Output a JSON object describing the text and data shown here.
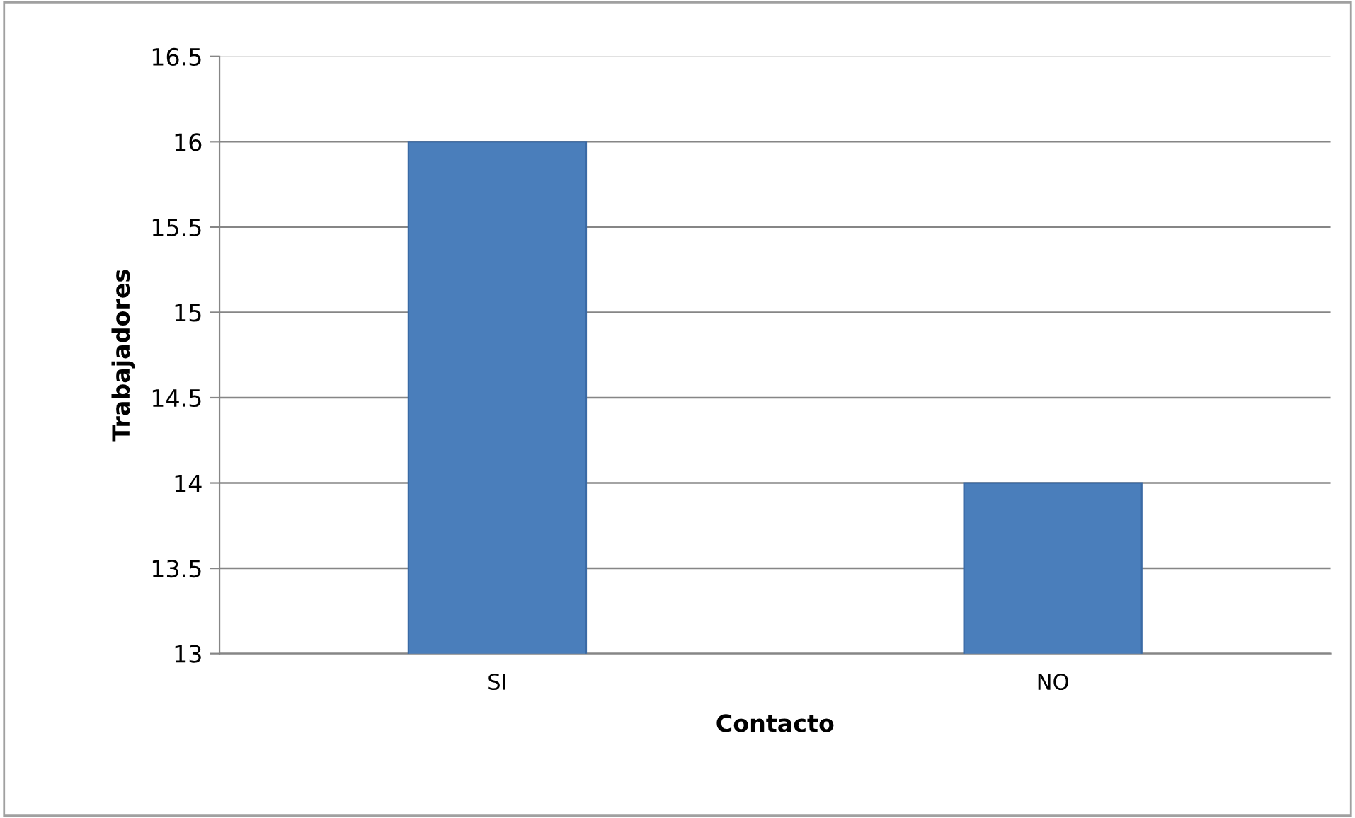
{
  "chart_data": {
    "type": "bar",
    "xlabel": "Contacto",
    "ylabel": "Trabajadores",
    "categories": [
      "SI",
      "NO"
    ],
    "values": [
      16,
      14
    ],
    "color": "#4a7ebb",
    "ylim": [
      13,
      16.5
    ],
    "yticks": [
      13,
      13.5,
      14,
      14.5,
      15,
      15.5,
      16,
      16.5
    ],
    "grid": "y"
  }
}
